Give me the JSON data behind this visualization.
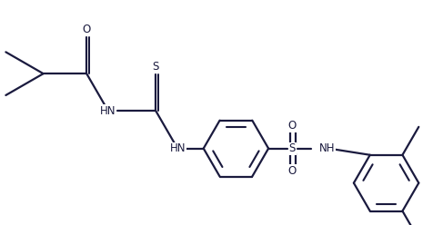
{
  "bg_color": "#ffffff",
  "line_color": "#1a1a3e",
  "line_width": 1.6,
  "font_size": 8.5,
  "figsize": [
    4.76,
    2.48
  ],
  "dpi": 100,
  "xlim": [
    0,
    10
  ],
  "ylim": [
    0,
    5.2
  ]
}
